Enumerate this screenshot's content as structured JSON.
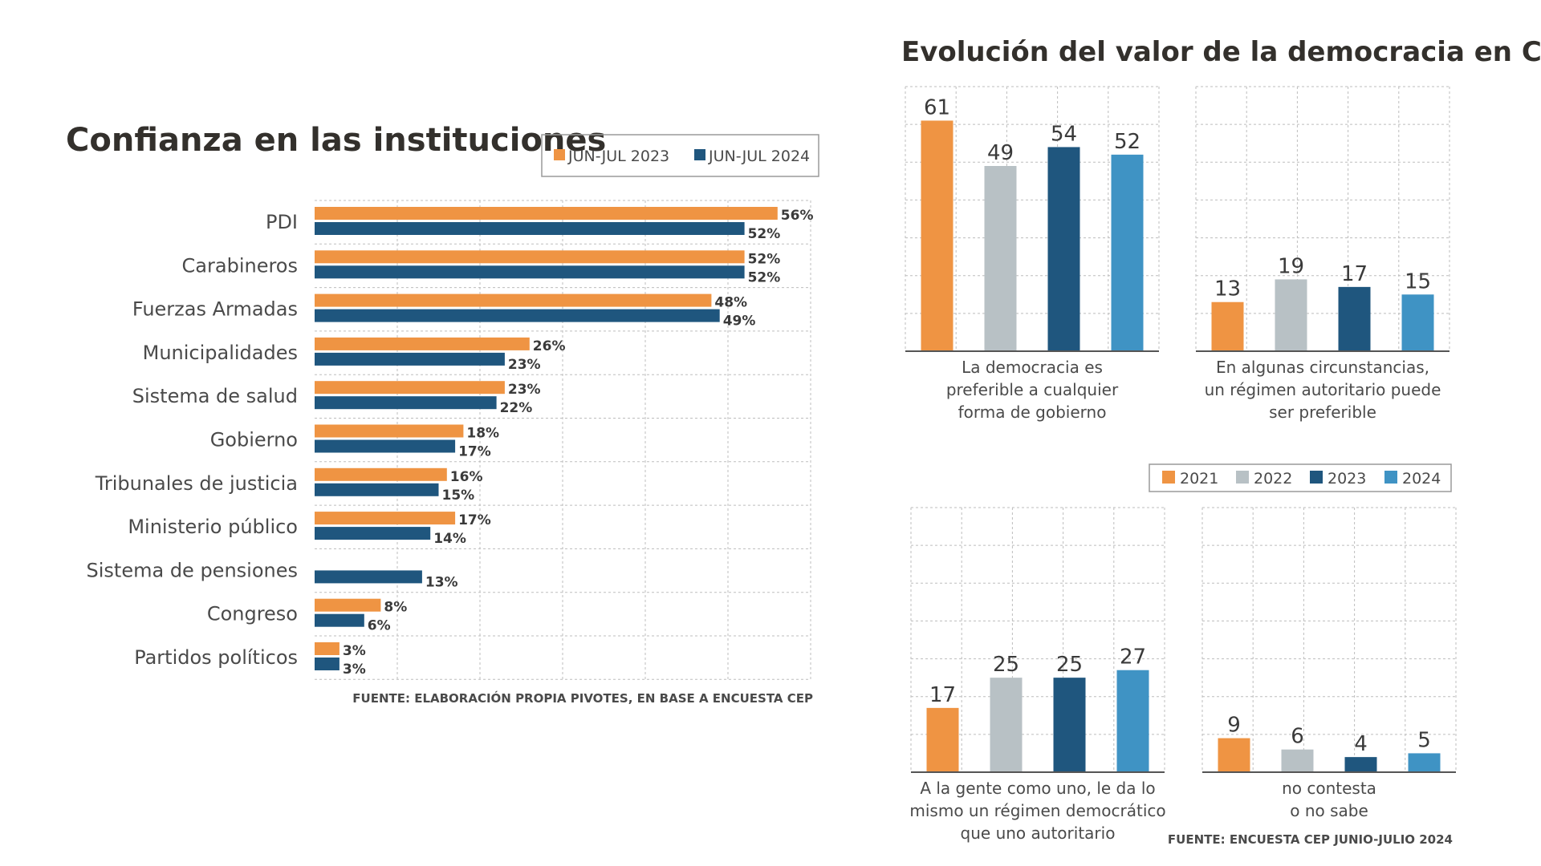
{
  "colors": {
    "orange": "#ef9443",
    "gray": "#b8c1c5",
    "navy": "#1f567e",
    "blue": "#3f93c4"
  },
  "left": {
    "title": "Confianza en las instituciones",
    "source": "FUENTE: ELABORACIÓN PROPIA PIVOTES, EN BASE A ENCUESTA CEP"
  },
  "right": {
    "title": "Evolución del valor de la democracia en Chile",
    "source": "FUENTE: ENCUESTA CEP JUNIO-JULIO 2024"
  },
  "chart_data": [
    {
      "type": "bar",
      "orientation": "horizontal",
      "title": "Confianza en las instituciones",
      "legend_position": "top-right",
      "grid": true,
      "xlim": [
        0,
        60
      ],
      "categories": [
        "PDI",
        "Carabineros",
        "Fuerzas Armadas",
        "Municipalidades",
        "Sistema de salud",
        "Gobierno",
        "Tribunales de justicia",
        "Ministerio público",
        "Sistema de pensiones",
        "Congreso",
        "Partidos políticos"
      ],
      "series": [
        {
          "name": "JUN-JUL 2023",
          "color": "#ef9443",
          "values": [
            56,
            52,
            48,
            26,
            23,
            18,
            16,
            17,
            null,
            8,
            3
          ],
          "labels": [
            "56%",
            "52%",
            "48%",
            "26%",
            "23%",
            "18%",
            "16%",
            "17%",
            "",
            "8%",
            "3%"
          ]
        },
        {
          "name": "JUN-JUL 2024",
          "color": "#1f567e",
          "values": [
            52,
            52,
            49,
            23,
            22,
            17,
            15,
            14,
            13,
            6,
            3
          ],
          "labels": [
            "52%",
            "52%",
            "49%",
            "23%",
            "22%",
            "17%",
            "15%",
            "14%",
            "13%",
            "6%",
            "3%"
          ]
        }
      ]
    },
    {
      "type": "bar",
      "caption": [
        "La democracia es",
        "preferible a cualquier",
        "forma de gobierno"
      ],
      "categories": [
        "2021",
        "2022",
        "2023",
        "2024"
      ],
      "values": [
        61,
        49,
        54,
        52
      ],
      "ylim": [
        0,
        70
      ],
      "grid": true
    },
    {
      "type": "bar",
      "caption": [
        "En algunas circunstancias,",
        "un régimen autoritario puede",
        "ser preferible"
      ],
      "categories": [
        "2021",
        "2022",
        "2023",
        "2024"
      ],
      "values": [
        13,
        19,
        17,
        15
      ],
      "ylim": [
        0,
        70
      ],
      "grid": true
    },
    {
      "type": "bar",
      "caption": [
        "A la gente como uno, le da lo",
        "mismo un régimen democrático",
        "que uno autoritario"
      ],
      "categories": [
        "2021",
        "2022",
        "2023",
        "2024"
      ],
      "values": [
        17,
        25,
        25,
        27
      ],
      "ylim": [
        0,
        70
      ],
      "grid": true
    },
    {
      "type": "bar",
      "caption": [
        "no contesta",
        "o no sabe"
      ],
      "categories": [
        "2021",
        "2022",
        "2023",
        "2024"
      ],
      "values": [
        9,
        6,
        4,
        5
      ],
      "ylim": [
        0,
        70
      ],
      "grid": true
    }
  ],
  "right_legend": [
    "2021",
    "2022",
    "2023",
    "2024"
  ]
}
